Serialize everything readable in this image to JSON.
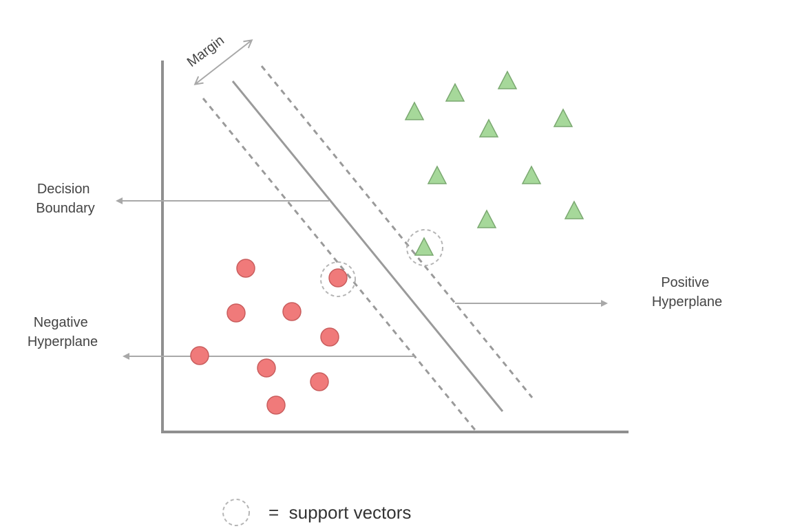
{
  "labels": {
    "margin": "Margin",
    "decision_boundary": [
      "Decision",
      "Boundary"
    ],
    "positive_hyperplane": [
      "Positive",
      "Hyperplane"
    ],
    "negative_hyperplane": [
      "Negative",
      "Hyperplane"
    ]
  },
  "legend": {
    "text": "=  support vectors"
  },
  "colors": {
    "axis": "#8f8f8f",
    "line": "#9a9a9a",
    "arrow": "#a8a8a8",
    "circle_fill": "#f07a7a",
    "circle_stroke": "#c95d5d",
    "triangle_fill": "#a6d89a",
    "triangle_stroke": "#7aa870",
    "support_ring": "#b5b5b5"
  }
}
